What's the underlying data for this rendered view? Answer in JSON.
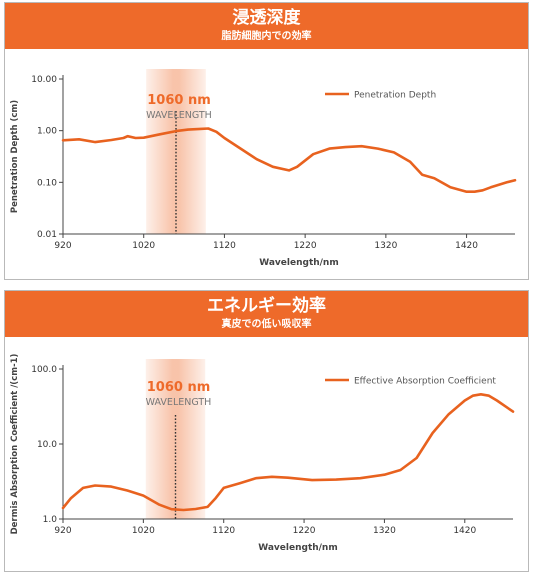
{
  "panels": [
    {
      "title": "浸透深度",
      "subtitle": "脂肪細胞内での効率"
    },
    {
      "title": "エネルギー効率",
      "subtitle": "真皮での低い吸収率"
    }
  ],
  "colors": {
    "accent": "#ee6a2a",
    "line": "#e8621f",
    "text": "#555555"
  },
  "chart_data": [
    {
      "type": "line",
      "title": "浸透深度",
      "subtitle": "脂肪細胞内での効率",
      "xlabel": "Wavelength/nm",
      "ylabel": "Penetration Depth (cm)",
      "yscale": "log",
      "xlim": [
        920,
        1480
      ],
      "ylim": [
        0.01,
        10
      ],
      "x_ticks": [
        920,
        1020,
        1120,
        1220,
        1320,
        1420
      ],
      "y_tick_labels": [
        "10.00",
        "1.00",
        "0.10",
        "0.01"
      ],
      "y_ticks": [
        10,
        1,
        0.1,
        0.01
      ],
      "grid": false,
      "legend": "top-right",
      "annotation": {
        "x": 1060,
        "label": "1060 nm",
        "sublabel": "WAVELENGTH"
      },
      "series": [
        {
          "name": "Penetration Depth",
          "x": [
            920,
            940,
            960,
            980,
            995,
            1000,
            1010,
            1020,
            1040,
            1060,
            1075,
            1090,
            1100,
            1110,
            1120,
            1140,
            1160,
            1180,
            1200,
            1210,
            1230,
            1250,
            1270,
            1290,
            1310,
            1330,
            1350,
            1365,
            1380,
            1400,
            1420,
            1430,
            1440,
            1450,
            1460,
            1470,
            1480
          ],
          "y": [
            0.65,
            0.68,
            0.6,
            0.66,
            0.72,
            0.78,
            0.72,
            0.73,
            0.85,
            0.98,
            1.05,
            1.08,
            1.1,
            0.95,
            0.72,
            0.45,
            0.28,
            0.2,
            0.17,
            0.2,
            0.35,
            0.45,
            0.48,
            0.5,
            0.45,
            0.38,
            0.25,
            0.14,
            0.12,
            0.08,
            0.066,
            0.066,
            0.07,
            0.08,
            0.09,
            0.1,
            0.11
          ]
        }
      ]
    },
    {
      "type": "line",
      "title": "エネルギー効率",
      "subtitle": "真皮での低い吸収率",
      "xlabel": "Wavelength/nm",
      "ylabel": "Dermis Absorption Coefficient /(cm-1)",
      "yscale": "log",
      "xlim": [
        920,
        1480
      ],
      "ylim": [
        1,
        100
      ],
      "x_ticks": [
        920,
        1020,
        1120,
        1220,
        1320,
        1420
      ],
      "y_tick_labels": [
        "100.0",
        "10.0",
        "1.0"
      ],
      "y_ticks": [
        100,
        10,
        1
      ],
      "grid": false,
      "legend": "top-right",
      "annotation": {
        "x": 1060,
        "label": "1060 nm",
        "sublabel": "WAVELENGTH"
      },
      "series": [
        {
          "name": "Effective Absorption Coefficient",
          "x": [
            920,
            930,
            945,
            960,
            980,
            1000,
            1020,
            1040,
            1055,
            1070,
            1085,
            1100,
            1110,
            1120,
            1140,
            1160,
            1180,
            1200,
            1230,
            1260,
            1290,
            1320,
            1340,
            1360,
            1380,
            1400,
            1420,
            1430,
            1440,
            1450,
            1460,
            1470,
            1480
          ],
          "y": [
            1.4,
            1.9,
            2.6,
            2.8,
            2.7,
            2.4,
            2.05,
            1.55,
            1.35,
            1.32,
            1.36,
            1.45,
            1.9,
            2.6,
            3.0,
            3.5,
            3.65,
            3.55,
            3.3,
            3.35,
            3.5,
            3.9,
            4.5,
            6.5,
            14,
            25,
            38,
            44,
            46,
            44,
            38,
            32,
            27
          ]
        }
      ]
    }
  ]
}
